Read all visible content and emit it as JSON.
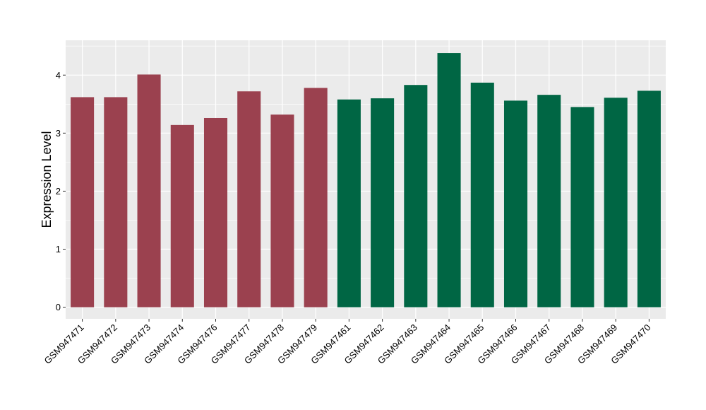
{
  "chart_data": {
    "type": "bar",
    "title": "",
    "xlabel": "",
    "ylabel": "Expression Level",
    "ylim": [
      -0.2,
      4.6
    ],
    "yticks": [
      0,
      1,
      2,
      3,
      4
    ],
    "grid": true,
    "legend": "none",
    "categories": [
      "GSM947471",
      "GSM947472",
      "GSM947473",
      "GSM947474",
      "GSM947476",
      "GSM947477",
      "GSM947478",
      "GSM947479",
      "GSM947461",
      "GSM947462",
      "GSM947463",
      "GSM947464",
      "GSM947465",
      "GSM947466",
      "GSM947467",
      "GSM947468",
      "GSM947469",
      "GSM947470"
    ],
    "values": [
      3.62,
      3.62,
      4.01,
      3.14,
      3.26,
      3.72,
      3.32,
      3.78,
      3.58,
      3.6,
      3.83,
      4.38,
      3.87,
      3.56,
      3.66,
      3.45,
      3.61,
      3.73
    ],
    "groups": [
      0,
      0,
      0,
      0,
      0,
      0,
      0,
      0,
      1,
      1,
      1,
      1,
      1,
      1,
      1,
      1,
      1,
      1
    ],
    "group_colors": [
      "#9b414f",
      "#006644"
    ],
    "panel_color": "#ebebeb",
    "grid_color": "#ffffff"
  }
}
